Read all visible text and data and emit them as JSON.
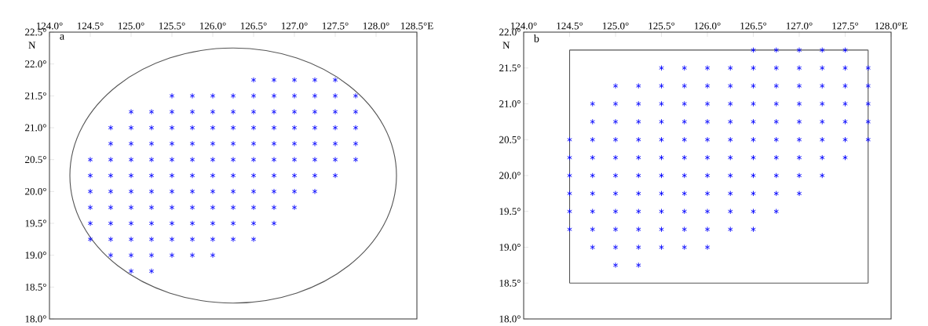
{
  "chart_data": [
    {
      "type": "scatter",
      "title": "a",
      "ylabel": "N",
      "marker": "cross",
      "xlim": [
        124.0,
        128.5
      ],
      "ylim": [
        18.0,
        22.5
      ],
      "xticks": [
        {
          "value": 124.0,
          "label": "124.0°"
        },
        {
          "value": 124.5,
          "label": "124.5°"
        },
        {
          "value": 125.0,
          "label": "125.0°"
        },
        {
          "value": 125.5,
          "label": "125.5°"
        },
        {
          "value": 126.0,
          "label": "126.0°"
        },
        {
          "value": 126.5,
          "label": "126.5°"
        },
        {
          "value": 127.0,
          "label": "127.0°"
        },
        {
          "value": 127.5,
          "label": "127.5°"
        },
        {
          "value": 128.0,
          "label": "128.0°"
        },
        {
          "value": 128.5,
          "label": "128.5°E"
        }
      ],
      "yticks": [
        {
          "value": 18.0,
          "label": "18.0°"
        },
        {
          "value": 18.5,
          "label": "18.5°"
        },
        {
          "value": 19.0,
          "label": "19.0°"
        },
        {
          "value": 19.5,
          "label": "19.5°"
        },
        {
          "value": 20.0,
          "label": "20.0°"
        },
        {
          "value": 20.5,
          "label": "20.5°"
        },
        {
          "value": 21.0,
          "label": "21.0°"
        },
        {
          "value": 21.5,
          "label": "21.5°"
        },
        {
          "value": 22.0,
          "label": "22.0°"
        },
        {
          "value": 22.5,
          "label": "22.5°"
        }
      ],
      "series": [
        {
          "color": "#0000ff",
          "x": [
            126.5,
            126.75,
            127.0,
            127.25,
            127.5
          ],
          "values": [
            21.75,
            21.75,
            21.75,
            21.75,
            21.75
          ]
        },
        {
          "color": "#0000ff",
          "x": [
            125.5,
            125.75,
            126.0,
            126.25,
            126.5,
            126.75,
            127.0,
            127.25,
            127.5,
            127.75
          ],
          "values": [
            21.5,
            21.5,
            21.5,
            21.5,
            21.5,
            21.5,
            21.5,
            21.5,
            21.5,
            21.5
          ]
        },
        {
          "color": "#0000ff",
          "x": [
            125.0,
            125.25,
            125.5,
            125.75,
            126.0,
            126.25,
            126.5,
            126.75,
            127.0,
            127.25,
            127.5,
            127.75
          ],
          "values": [
            21.25,
            21.25,
            21.25,
            21.25,
            21.25,
            21.25,
            21.25,
            21.25,
            21.25,
            21.25,
            21.25,
            21.25
          ]
        },
        {
          "color": "#0000ff",
          "x": [
            124.75,
            125.0,
            125.25,
            125.5,
            125.75,
            126.0,
            126.25,
            126.5,
            126.75,
            127.0,
            127.25,
            127.5,
            127.75
          ],
          "values": [
            21.0,
            21.0,
            21.0,
            21.0,
            21.0,
            21.0,
            21.0,
            21.0,
            21.0,
            21.0,
            21.0,
            21.0,
            21.0
          ]
        },
        {
          "color": "#0000ff",
          "x": [
            124.75,
            125.0,
            125.25,
            125.5,
            125.75,
            126.0,
            126.25,
            126.5,
            126.75,
            127.0,
            127.25,
            127.5,
            127.75
          ],
          "values": [
            20.75,
            20.75,
            20.75,
            20.75,
            20.75,
            20.75,
            20.75,
            20.75,
            20.75,
            20.75,
            20.75,
            20.75,
            20.75
          ]
        },
        {
          "color": "#0000ff",
          "x": [
            124.5,
            124.75,
            125.0,
            125.25,
            125.5,
            125.75,
            126.0,
            126.25,
            126.5,
            126.75,
            127.0,
            127.25,
            127.5,
            127.75
          ],
          "values": [
            20.5,
            20.5,
            20.5,
            20.5,
            20.5,
            20.5,
            20.5,
            20.5,
            20.5,
            20.5,
            20.5,
            20.5,
            20.5,
            20.5
          ]
        },
        {
          "color": "#0000ff",
          "x": [
            124.5,
            124.75,
            125.0,
            125.25,
            125.5,
            125.75,
            126.0,
            126.25,
            126.5,
            126.75,
            127.0,
            127.25,
            127.5
          ],
          "values": [
            20.25,
            20.25,
            20.25,
            20.25,
            20.25,
            20.25,
            20.25,
            20.25,
            20.25,
            20.25,
            20.25,
            20.25,
            20.25
          ]
        },
        {
          "color": "#0000ff",
          "x": [
            124.5,
            124.75,
            125.0,
            125.25,
            125.5,
            125.75,
            126.0,
            126.25,
            126.5,
            126.75,
            127.0,
            127.25
          ],
          "values": [
            20.0,
            20.0,
            20.0,
            20.0,
            20.0,
            20.0,
            20.0,
            20.0,
            20.0,
            20.0,
            20.0,
            20.0
          ]
        },
        {
          "color": "#0000ff",
          "x": [
            124.5,
            124.75,
            125.0,
            125.25,
            125.5,
            125.75,
            126.0,
            126.25,
            126.5,
            126.75,
            127.0
          ],
          "values": [
            19.75,
            19.75,
            19.75,
            19.75,
            19.75,
            19.75,
            19.75,
            19.75,
            19.75,
            19.75,
            19.75
          ]
        },
        {
          "color": "#0000ff",
          "x": [
            124.5,
            124.75,
            125.0,
            125.25,
            125.5,
            125.75,
            126.0,
            126.25,
            126.5,
            126.75
          ],
          "values": [
            19.5,
            19.5,
            19.5,
            19.5,
            19.5,
            19.5,
            19.5,
            19.5,
            19.5,
            19.5
          ]
        },
        {
          "color": "#0000ff",
          "x": [
            124.5,
            124.75,
            125.0,
            125.25,
            125.5,
            125.75,
            126.0,
            126.25,
            126.5
          ],
          "values": [
            19.25,
            19.25,
            19.25,
            19.25,
            19.25,
            19.25,
            19.25,
            19.25,
            19.25
          ]
        },
        {
          "color": "#0000ff",
          "x": [
            124.75,
            125.0,
            125.25,
            125.5,
            125.75,
            126.0
          ],
          "values": [
            19.0,
            19.0,
            19.0,
            19.0,
            19.0,
            19.0
          ]
        },
        {
          "color": "#0000ff",
          "x": [
            125.0,
            125.25
          ],
          "values": [
            18.75,
            18.75
          ]
        }
      ]
    },
    {
      "type": "scatter",
      "title": "b",
      "ylabel": "N",
      "marker": "cross",
      "xlim": [
        124.0,
        128.0
      ],
      "ylim": [
        18.0,
        22.0
      ],
      "xticks": [
        {
          "value": 124.0,
          "label": "124.0°"
        },
        {
          "value": 124.5,
          "label": "124.5°"
        },
        {
          "value": 125.0,
          "label": "125.0°"
        },
        {
          "value": 125.5,
          "label": "125.5°"
        },
        {
          "value": 126.0,
          "label": "126.0°"
        },
        {
          "value": 126.5,
          "label": "126.5°"
        },
        {
          "value": 127.0,
          "label": "127.0°"
        },
        {
          "value": 127.5,
          "label": "127.5°"
        },
        {
          "value": 128.0,
          "label": "128.0°E"
        }
      ],
      "yticks": [
        {
          "value": 18.0,
          "label": "18.0°"
        },
        {
          "value": 18.5,
          "label": "18.5°"
        },
        {
          "value": 19.0,
          "label": "19.0°"
        },
        {
          "value": 19.5,
          "label": "19.5°"
        },
        {
          "value": 20.0,
          "label": "20.0°"
        },
        {
          "value": 20.5,
          "label": "20.5°"
        },
        {
          "value": 21.0,
          "label": "21.0°"
        },
        {
          "value": 21.5,
          "label": "21.5°"
        },
        {
          "value": 22.0,
          "label": "22.0°"
        }
      ],
      "series": [
        {
          "color": "#0000ff",
          "x": [
            126.5,
            126.75,
            127.0,
            127.25,
            127.5
          ],
          "values": [
            21.75,
            21.75,
            21.75,
            21.75,
            21.75
          ]
        },
        {
          "color": "#0000ff",
          "x": [
            125.5,
            125.75,
            126.0,
            126.25,
            126.5,
            126.75,
            127.0,
            127.25,
            127.5,
            127.75
          ],
          "values": [
            21.5,
            21.5,
            21.5,
            21.5,
            21.5,
            21.5,
            21.5,
            21.5,
            21.5,
            21.5
          ]
        },
        {
          "color": "#0000ff",
          "x": [
            125.0,
            125.25,
            125.5,
            125.75,
            126.0,
            126.25,
            126.5,
            126.75,
            127.0,
            127.25,
            127.5,
            127.75
          ],
          "values": [
            21.25,
            21.25,
            21.25,
            21.25,
            21.25,
            21.25,
            21.25,
            21.25,
            21.25,
            21.25,
            21.25,
            21.25
          ]
        },
        {
          "color": "#0000ff",
          "x": [
            124.75,
            125.0,
            125.25,
            125.5,
            125.75,
            126.0,
            126.25,
            126.5,
            126.75,
            127.0,
            127.25,
            127.5,
            127.75
          ],
          "values": [
            21.0,
            21.0,
            21.0,
            21.0,
            21.0,
            21.0,
            21.0,
            21.0,
            21.0,
            21.0,
            21.0,
            21.0,
            21.0
          ]
        },
        {
          "color": "#0000ff",
          "x": [
            124.75,
            125.0,
            125.25,
            125.5,
            125.75,
            126.0,
            126.25,
            126.5,
            126.75,
            127.0,
            127.25,
            127.5,
            127.75
          ],
          "values": [
            20.75,
            20.75,
            20.75,
            20.75,
            20.75,
            20.75,
            20.75,
            20.75,
            20.75,
            20.75,
            20.75,
            20.75,
            20.75
          ]
        },
        {
          "color": "#0000ff",
          "x": [
            124.5,
            124.75,
            125.0,
            125.25,
            125.5,
            125.75,
            126.0,
            126.25,
            126.5,
            126.75,
            127.0,
            127.25,
            127.5,
            127.75
          ],
          "values": [
            20.5,
            20.5,
            20.5,
            20.5,
            20.5,
            20.5,
            20.5,
            20.5,
            20.5,
            20.5,
            20.5,
            20.5,
            20.5,
            20.5
          ]
        },
        {
          "color": "#0000ff",
          "x": [
            124.5,
            124.75,
            125.0,
            125.25,
            125.5,
            125.75,
            126.0,
            126.25,
            126.5,
            126.75,
            127.0,
            127.25,
            127.5
          ],
          "values": [
            20.25,
            20.25,
            20.25,
            20.25,
            20.25,
            20.25,
            20.25,
            20.25,
            20.25,
            20.25,
            20.25,
            20.25,
            20.25
          ]
        },
        {
          "color": "#0000ff",
          "x": [
            124.5,
            124.75,
            125.0,
            125.25,
            125.5,
            125.75,
            126.0,
            126.25,
            126.5,
            126.75,
            127.0,
            127.25
          ],
          "values": [
            20.0,
            20.0,
            20.0,
            20.0,
            20.0,
            20.0,
            20.0,
            20.0,
            20.0,
            20.0,
            20.0,
            20.0
          ]
        },
        {
          "color": "#0000ff",
          "x": [
            124.5,
            124.75,
            125.0,
            125.25,
            125.5,
            125.75,
            126.0,
            126.25,
            126.5,
            126.75,
            127.0
          ],
          "values": [
            19.75,
            19.75,
            19.75,
            19.75,
            19.75,
            19.75,
            19.75,
            19.75,
            19.75,
            19.75,
            19.75
          ]
        },
        {
          "color": "#0000ff",
          "x": [
            124.5,
            124.75,
            125.0,
            125.25,
            125.5,
            125.75,
            126.0,
            126.25,
            126.5,
            126.75
          ],
          "values": [
            19.5,
            19.5,
            19.5,
            19.5,
            19.5,
            19.5,
            19.5,
            19.5,
            19.5,
            19.5
          ]
        },
        {
          "color": "#0000ff",
          "x": [
            124.5,
            124.75,
            125.0,
            125.25,
            125.5,
            125.75,
            126.0,
            126.25,
            126.5
          ],
          "values": [
            19.25,
            19.25,
            19.25,
            19.25,
            19.25,
            19.25,
            19.25,
            19.25,
            19.25
          ]
        },
        {
          "color": "#0000ff",
          "x": [
            124.75,
            125.0,
            125.25,
            125.5,
            125.75,
            126.0
          ],
          "values": [
            19.0,
            19.0,
            19.0,
            19.0,
            19.0,
            19.0
          ]
        },
        {
          "color": "#0000ff",
          "x": [
            125.0,
            125.25
          ],
          "values": [
            18.75,
            18.75
          ]
        },
        {
          "type": "line",
          "marker": "none",
          "color": "#555555",
          "x": [
            124.5,
            127.75
          ],
          "values": [
            21.75,
            21.75
          ]
        },
        {
          "type": "line",
          "marker": "none",
          "color": "#555555",
          "x": [
            124.5,
            127.75
          ],
          "values": [
            18.5,
            18.5
          ]
        },
        {
          "type": "line",
          "marker": "none",
          "color": "#555555",
          "x": [
            124.5,
            124.5
          ],
          "values": [
            18.5,
            21.75
          ]
        },
        {
          "type": "line",
          "marker": "none",
          "color": "#555555",
          "x": [
            127.75,
            127.75
          ],
          "values": [
            18.5,
            21.75
          ]
        }
      ]
    }
  ]
}
